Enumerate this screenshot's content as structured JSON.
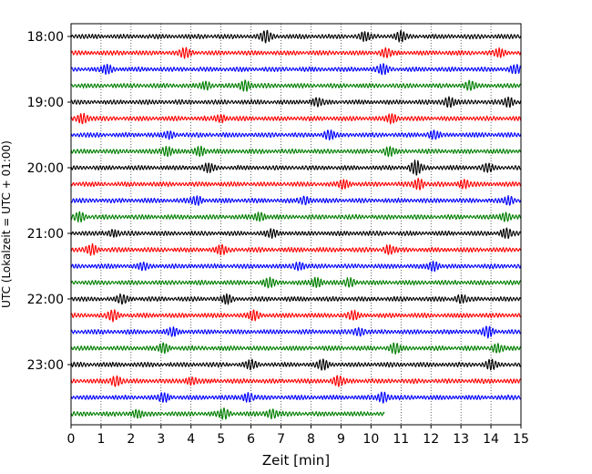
{
  "chart_data": {
    "type": "line",
    "title": "",
    "xlabel": "Zeit  [min]",
    "ylabel": "UTC (Lokalzeit = UTC + 01:00)",
    "xlim": [
      0,
      15
    ],
    "x_ticks": [
      "0",
      "1",
      "2",
      "3",
      "4",
      "5",
      "6",
      "7",
      "8",
      "9",
      "10",
      "11",
      "12",
      "13",
      "14",
      "15"
    ],
    "y_ticks": [
      "18:00",
      "19:00",
      "20:00",
      "21:00",
      "22:00",
      "23:00"
    ],
    "traces_per_hour": 4,
    "trace_start": "18:00",
    "trace_length_min": 15,
    "last_trace_end_min": 10.45,
    "trace_colors": [
      "#000000",
      "#ff0000",
      "#0000ff",
      "#007f00"
    ],
    "grid": "vertical-dotted",
    "series": [
      {
        "start": "18:00",
        "color": "#000000",
        "events": [
          {
            "t": 6.5,
            "amp": 1.6
          },
          {
            "t": 11.0,
            "amp": 1.3
          },
          {
            "t": 9.8,
            "amp": 1.1
          }
        ]
      },
      {
        "start": "18:15",
        "color": "#ff0000",
        "events": [
          {
            "t": 3.8,
            "amp": 1.2
          },
          {
            "t": 10.5,
            "amp": 1.1
          },
          {
            "t": 14.3,
            "amp": 1.0
          }
        ]
      },
      {
        "start": "18:30",
        "color": "#0000ff",
        "events": [
          {
            "t": 1.2,
            "amp": 1.2
          },
          {
            "t": 10.4,
            "amp": 1.3
          },
          {
            "t": 14.8,
            "amp": 1.1
          }
        ]
      },
      {
        "start": "18:45",
        "color": "#007f00",
        "events": [
          {
            "t": 5.8,
            "amp": 1.6
          },
          {
            "t": 13.3,
            "amp": 1.2
          },
          {
            "t": 4.5,
            "amp": 1.0
          }
        ]
      },
      {
        "start": "19:00",
        "color": "#000000",
        "events": [
          {
            "t": 12.6,
            "amp": 1.4
          },
          {
            "t": 14.6,
            "amp": 1.3
          },
          {
            "t": 8.2,
            "amp": 1.0
          }
        ]
      },
      {
        "start": "19:15",
        "color": "#ff0000",
        "events": [
          {
            "t": 0.4,
            "amp": 1.4
          },
          {
            "t": 10.7,
            "amp": 1.2
          },
          {
            "t": 5.0,
            "amp": 1.0
          }
        ]
      },
      {
        "start": "19:30",
        "color": "#0000ff",
        "events": [
          {
            "t": 8.6,
            "amp": 1.2
          },
          {
            "t": 12.1,
            "amp": 1.1
          },
          {
            "t": 3.3,
            "amp": 0.9
          }
        ]
      },
      {
        "start": "19:45",
        "color": "#007f00",
        "events": [
          {
            "t": 3.2,
            "amp": 1.4
          },
          {
            "t": 4.3,
            "amp": 1.3
          },
          {
            "t": 10.6,
            "amp": 1.2
          }
        ]
      },
      {
        "start": "20:00",
        "color": "#000000",
        "events": [
          {
            "t": 11.5,
            "amp": 2.0
          },
          {
            "t": 4.6,
            "amp": 1.1
          },
          {
            "t": 13.9,
            "amp": 1.0
          }
        ]
      },
      {
        "start": "20:15",
        "color": "#ff0000",
        "events": [
          {
            "t": 11.6,
            "amp": 1.5
          },
          {
            "t": 9.1,
            "amp": 1.1
          },
          {
            "t": 13.1,
            "amp": 1.2
          }
        ]
      },
      {
        "start": "20:30",
        "color": "#0000ff",
        "events": [
          {
            "t": 4.2,
            "amp": 1.2
          },
          {
            "t": 7.8,
            "amp": 1.1
          },
          {
            "t": 14.6,
            "amp": 1.0
          }
        ]
      },
      {
        "start": "20:45",
        "color": "#007f00",
        "events": [
          {
            "t": 0.3,
            "amp": 1.3
          },
          {
            "t": 6.3,
            "amp": 1.2
          },
          {
            "t": 14.5,
            "amp": 1.2
          }
        ]
      },
      {
        "start": "21:00",
        "color": "#000000",
        "events": [
          {
            "t": 14.5,
            "amp": 1.3
          },
          {
            "t": 6.7,
            "amp": 1.0
          },
          {
            "t": 1.4,
            "amp": 0.9
          }
        ]
      },
      {
        "start": "21:15",
        "color": "#ff0000",
        "events": [
          {
            "t": 0.7,
            "amp": 1.4
          },
          {
            "t": 5.0,
            "amp": 1.2
          },
          {
            "t": 10.6,
            "amp": 1.2
          }
        ]
      },
      {
        "start": "21:30",
        "color": "#0000ff",
        "events": [
          {
            "t": 12.1,
            "amp": 1.3
          },
          {
            "t": 7.6,
            "amp": 1.1
          },
          {
            "t": 2.4,
            "amp": 0.9
          }
        ]
      },
      {
        "start": "21:45",
        "color": "#007f00",
        "events": [
          {
            "t": 8.2,
            "amp": 1.3
          },
          {
            "t": 6.6,
            "amp": 1.2
          },
          {
            "t": 9.3,
            "amp": 1.1
          }
        ]
      },
      {
        "start": "22:00",
        "color": "#000000",
        "events": [
          {
            "t": 1.7,
            "amp": 1.1
          },
          {
            "t": 5.2,
            "amp": 1.2
          },
          {
            "t": 13.0,
            "amp": 1.0
          }
        ]
      },
      {
        "start": "22:15",
        "color": "#ff0000",
        "events": [
          {
            "t": 1.4,
            "amp": 1.4
          },
          {
            "t": 6.1,
            "amp": 1.3
          },
          {
            "t": 9.4,
            "amp": 1.1
          }
        ]
      },
      {
        "start": "22:30",
        "color": "#0000ff",
        "events": [
          {
            "t": 13.9,
            "amp": 1.4
          },
          {
            "t": 3.4,
            "amp": 1.1
          },
          {
            "t": 9.6,
            "amp": 1.1
          }
        ]
      },
      {
        "start": "22:45",
        "color": "#007f00",
        "events": [
          {
            "t": 3.1,
            "amp": 1.3
          },
          {
            "t": 10.8,
            "amp": 1.3
          },
          {
            "t": 14.2,
            "amp": 1.1
          }
        ]
      },
      {
        "start": "23:00",
        "color": "#000000",
        "events": [
          {
            "t": 8.4,
            "amp": 1.4
          },
          {
            "t": 14.0,
            "amp": 1.2
          },
          {
            "t": 6.0,
            "amp": 1.1
          }
        ]
      },
      {
        "start": "23:15",
        "color": "#ff0000",
        "events": [
          {
            "t": 1.5,
            "amp": 1.5
          },
          {
            "t": 8.9,
            "amp": 1.4
          },
          {
            "t": 4.0,
            "amp": 1.0
          }
        ]
      },
      {
        "start": "23:30",
        "color": "#0000ff",
        "events": [
          {
            "t": 10.4,
            "amp": 1.5
          },
          {
            "t": 5.9,
            "amp": 1.3
          },
          {
            "t": 3.1,
            "amp": 1.1
          }
        ]
      },
      {
        "start": "23:45",
        "color": "#007f00",
        "events": [
          {
            "t": 5.1,
            "amp": 1.4
          },
          {
            "t": 6.7,
            "amp": 1.3
          },
          {
            "t": 2.2,
            "amp": 1.0
          }
        ],
        "end_min": 10.45
      }
    ]
  }
}
